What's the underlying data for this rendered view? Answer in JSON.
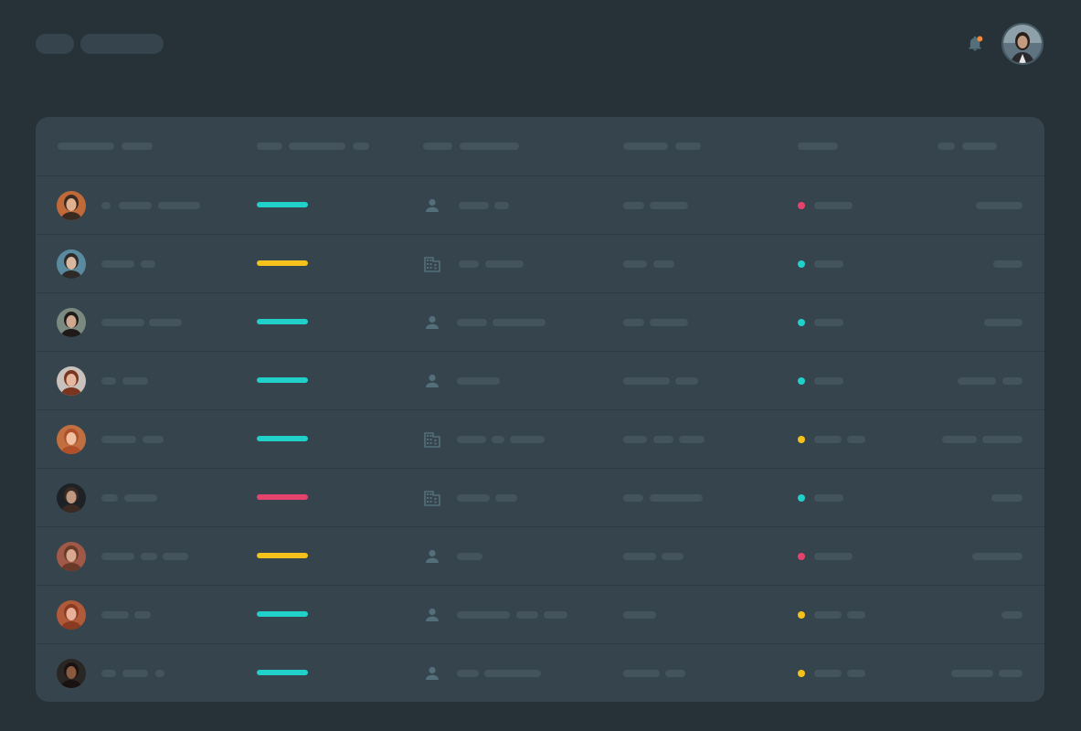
{
  "colors": {
    "background": "#263238",
    "card": "#36454d",
    "skeleton": "#44545d",
    "header_skeleton": "#36454d",
    "icon": "#546e7a",
    "notification_dot": "#f08a3c"
  },
  "header": {
    "notification_icon": "bell-icon",
    "avatar_icon": "user-avatar"
  },
  "table": {
    "columns": 6,
    "rows": [
      {
        "avatar_palette": [
          "#c06a3a",
          "#3b2a20",
          "#e0b090"
        ],
        "status_color": "#1fd1c8",
        "type_icon": "person-icon",
        "dot_color": "#e5436e"
      },
      {
        "avatar_palette": [
          "#5a8aa0",
          "#2e2a28",
          "#d9b8a0"
        ],
        "status_color": "#f5c21b",
        "type_icon": "building-icon",
        "dot_color": "#1fd1c8"
      },
      {
        "avatar_palette": [
          "#7a8a80",
          "#1e1a18",
          "#d0a890"
        ],
        "status_color": "#1fd1c8",
        "type_icon": "person-icon",
        "dot_color": "#1fd1c8"
      },
      {
        "avatar_palette": [
          "#c9c2bc",
          "#7a3520",
          "#e6b8a0"
        ],
        "status_color": "#1fd1c8",
        "type_icon": "person-icon",
        "dot_color": "#1fd1c8"
      },
      {
        "avatar_palette": [
          "#c07040",
          "#b0502a",
          "#f0c0a0"
        ],
        "status_color": "#1fd1c8",
        "type_icon": "building-icon",
        "dot_color": "#f5c21b"
      },
      {
        "avatar_palette": [
          "#1e2226",
          "#3a2a22",
          "#c09880"
        ],
        "status_color": "#e5436e",
        "type_icon": "building-icon",
        "dot_color": "#1fd1c8"
      },
      {
        "avatar_palette": [
          "#a05848",
          "#6a3a28",
          "#d8a890"
        ],
        "status_color": "#f5c21b",
        "type_icon": "person-icon",
        "dot_color": "#e5436e"
      },
      {
        "avatar_palette": [
          "#b05a3a",
          "#8a3a20",
          "#e8b098"
        ],
        "status_color": "#1fd1c8",
        "type_icon": "person-icon",
        "dot_color": "#f5c21b"
      },
      {
        "avatar_palette": [
          "#2a2624",
          "#1a1210",
          "#8a5a40"
        ],
        "status_color": "#1fd1c8",
        "type_icon": "person-icon",
        "dot_color": "#f5c21b"
      }
    ]
  }
}
